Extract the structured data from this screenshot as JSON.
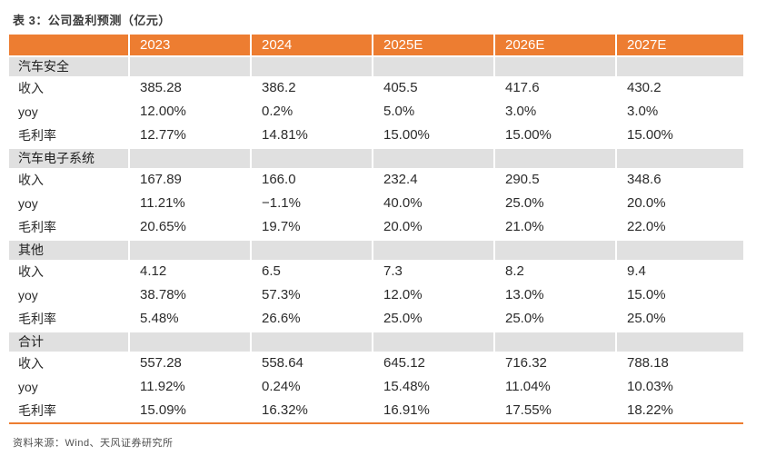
{
  "title": "表 3：公司盈利预测（亿元）",
  "footer": "资料来源：Wind、天风证券研究所",
  "colors": {
    "accent_orange": "#ED7D31",
    "section_gray": "#E0E0E0",
    "header_text": "#FFFFFF",
    "body_text": "#2B2B2B"
  },
  "table": {
    "columns": [
      "",
      "2023",
      "2024",
      "2025E",
      "2026E",
      "2027E"
    ],
    "sections": [
      {
        "label": "汽车安全",
        "rows": [
          {
            "label": "收入",
            "values": [
              "385.28",
              "386.2",
              "405.5",
              "417.6",
              "430.2"
            ]
          },
          {
            "label": "yoy",
            "values": [
              "12.00%",
              "0.2%",
              "5.0%",
              "3.0%",
              "3.0%"
            ]
          },
          {
            "label": "毛利率",
            "values": [
              "12.77%",
              "14.81%",
              "15.00%",
              "15.00%",
              "15.00%"
            ]
          }
        ]
      },
      {
        "label": "汽车电子系统",
        "rows": [
          {
            "label": "收入",
            "values": [
              "167.89",
              "166.0",
              "232.4",
              "290.5",
              "348.6"
            ]
          },
          {
            "label": "yoy",
            "values": [
              "11.21%",
              "−1.1%",
              "40.0%",
              "25.0%",
              "20.0%"
            ]
          },
          {
            "label": "毛利率",
            "values": [
              "20.65%",
              "19.7%",
              "20.0%",
              "21.0%",
              "22.0%"
            ]
          }
        ]
      },
      {
        "label": "其他",
        "rows": [
          {
            "label": "收入",
            "values": [
              "4.12",
              "6.5",
              "7.3",
              "8.2",
              "9.4"
            ]
          },
          {
            "label": "yoy",
            "values": [
              "38.78%",
              "57.3%",
              "12.0%",
              "13.0%",
              "15.0%"
            ]
          },
          {
            "label": "毛利率",
            "values": [
              "5.48%",
              "26.6%",
              "25.0%",
              "25.0%",
              "25.0%"
            ]
          }
        ]
      },
      {
        "label": "合计",
        "rows": [
          {
            "label": "收入",
            "values": [
              "557.28",
              "558.64",
              "645.12",
              "716.32",
              "788.18"
            ]
          },
          {
            "label": "yoy",
            "values": [
              "11.92%",
              "0.24%",
              "15.48%",
              "11.04%",
              "10.03%"
            ]
          },
          {
            "label": "毛利率",
            "values": [
              "15.09%",
              "16.32%",
              "16.91%",
              "17.55%",
              "18.22%"
            ]
          }
        ]
      }
    ]
  }
}
